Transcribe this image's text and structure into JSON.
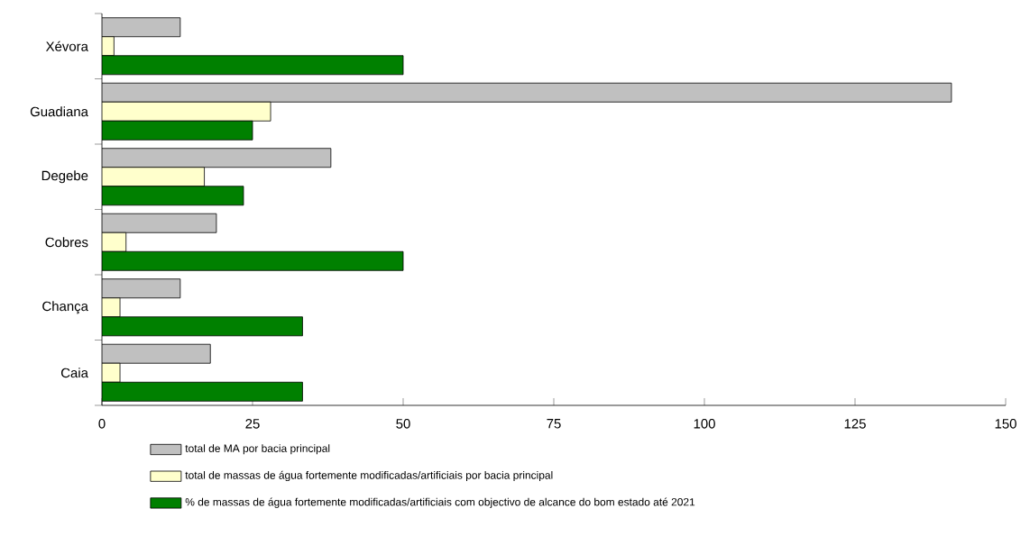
{
  "chart_data": {
    "type": "bar",
    "orientation": "horizontal",
    "categories": [
      "Xévora",
      "Guadiana",
      "Degebe",
      "Cobres",
      "Chança",
      "Caia"
    ],
    "series": [
      {
        "name": "total de MA por bacia principal",
        "color": "#c0c0c0",
        "values": [
          13,
          141,
          38,
          19,
          13,
          18
        ]
      },
      {
        "name": "total de massas de água fortemente modificadas/artificiais por bacia principal",
        "color": "#ffffcc",
        "values": [
          2,
          28,
          17,
          4,
          3,
          3
        ]
      },
      {
        "name": "% de massas de água fortemente modificadas/artificiais com objectivo de alcance do bom estado até 2021",
        "color": "#008000",
        "values": [
          50,
          25,
          23.5,
          50,
          33.3,
          33.3
        ]
      }
    ],
    "xlim": [
      0,
      150
    ],
    "xticks": [
      0,
      25,
      50,
      75,
      100,
      125,
      150
    ],
    "grid": false,
    "legend": "bottom"
  }
}
